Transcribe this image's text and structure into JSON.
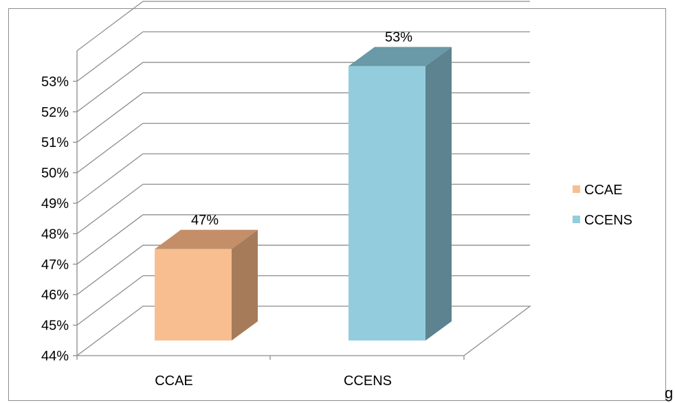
{
  "chart_data": {
    "type": "bar",
    "categories": [
      "CCAE",
      "CCENS"
    ],
    "series": [
      {
        "name": "CCAE",
        "values": [
          47,
          null
        ],
        "color": "#f9be8f"
      },
      {
        "name": "CCENS",
        "values": [
          null,
          53
        ],
        "color": "#93cddd"
      }
    ],
    "bars": [
      {
        "category": "CCAE",
        "value": 47,
        "label": "47%",
        "color": "#f9be8f",
        "side_color": "#a57b5a",
        "top_color": "#c48f68"
      },
      {
        "category": "CCENS",
        "value": 53,
        "label": "53%",
        "color": "#93cddd",
        "side_color": "#5c838f",
        "top_color": "#6a9aa8"
      }
    ],
    "y_ticks": [
      "44%",
      "45%",
      "46%",
      "47%",
      "48%",
      "49%",
      "50%",
      "51%",
      "52%",
      "53%"
    ],
    "ylim": [
      44,
      53
    ],
    "grid": true,
    "three_d": true,
    "legend": {
      "position": "right",
      "entries": [
        "CCAE",
        "CCENS"
      ]
    }
  },
  "stray_char": "g"
}
